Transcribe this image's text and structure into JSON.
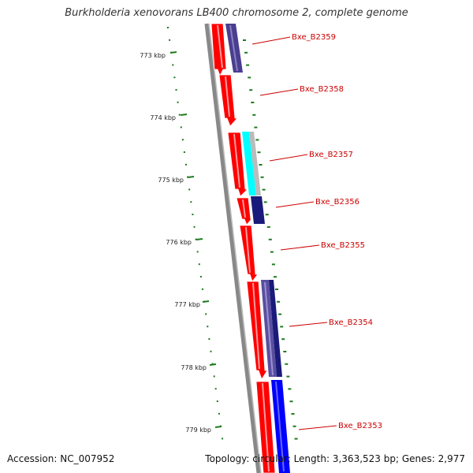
{
  "title": "Burkholderia xenovorans LB400 chromosome 2, complete genome",
  "footer": {
    "accession_label": "Accession:",
    "accession": "NC_007952",
    "topology_label": "Topology:",
    "topology": "circular;",
    "length_label": "Length:",
    "length": "3,363,523 bp;",
    "genes_label": "Genes:",
    "genes": "2,977"
  },
  "colors": {
    "cds_forward": "#ff0000",
    "cds_reverse_gene": "#ff0000",
    "feature_purple": "#4a3e90",
    "feature_navy": "#1a1a7a",
    "feature_blue": "#0000ff",
    "feature_cyan": "#00ffff",
    "feature_gray": "#bbbbbb",
    "backbone": "#808080",
    "tick": "#1f7a1f",
    "label": "#cc0000"
  },
  "kbp_ticks": [
    "773 kbp",
    "774 kbp",
    "775 kbp",
    "776 kbp",
    "777 kbp",
    "778 kbp",
    "779 kbp"
  ],
  "gene_labels": [
    "Bxe_B2359",
    "Bxe_B2358",
    "Bxe_B2357",
    "Bxe_B2356",
    "Bxe_B2355",
    "Bxe_B2354",
    "Bxe_B2353"
  ]
}
